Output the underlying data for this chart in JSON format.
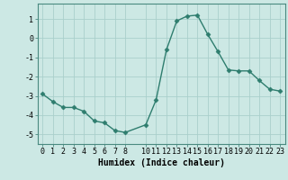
{
  "x": [
    0,
    1,
    2,
    3,
    4,
    5,
    6,
    7,
    8,
    10,
    11,
    12,
    13,
    14,
    15,
    16,
    17,
    18,
    19,
    20,
    21,
    22,
    23
  ],
  "y": [
    -2.9,
    -3.3,
    -3.6,
    -3.6,
    -3.8,
    -4.3,
    -4.4,
    -4.8,
    -4.9,
    -4.5,
    -3.2,
    -0.6,
    0.9,
    1.15,
    1.2,
    0.2,
    -0.7,
    -1.65,
    -1.7,
    -1.7,
    -2.2,
    -2.65,
    -2.75
  ],
  "line_color": "#2e7d6e",
  "marker": "D",
  "markersize": 2.5,
  "linewidth": 1.0,
  "bg_color": "#cce8e4",
  "grid_color": "#aacfcb",
  "xlabel": "Humidex (Indice chaleur)",
  "xlabel_fontsize": 7,
  "xlim": [
    -0.5,
    23.5
  ],
  "ylim": [
    -5.5,
    1.8
  ],
  "xticks": [
    0,
    1,
    2,
    3,
    4,
    5,
    6,
    7,
    8,
    10,
    11,
    12,
    13,
    14,
    15,
    16,
    17,
    18,
    19,
    20,
    21,
    22,
    23
  ],
  "yticks": [
    -5,
    -4,
    -3,
    -2,
    -1,
    0,
    1
  ],
  "tick_fontsize": 6.0,
  "figsize": [
    3.2,
    2.0
  ],
  "dpi": 100
}
